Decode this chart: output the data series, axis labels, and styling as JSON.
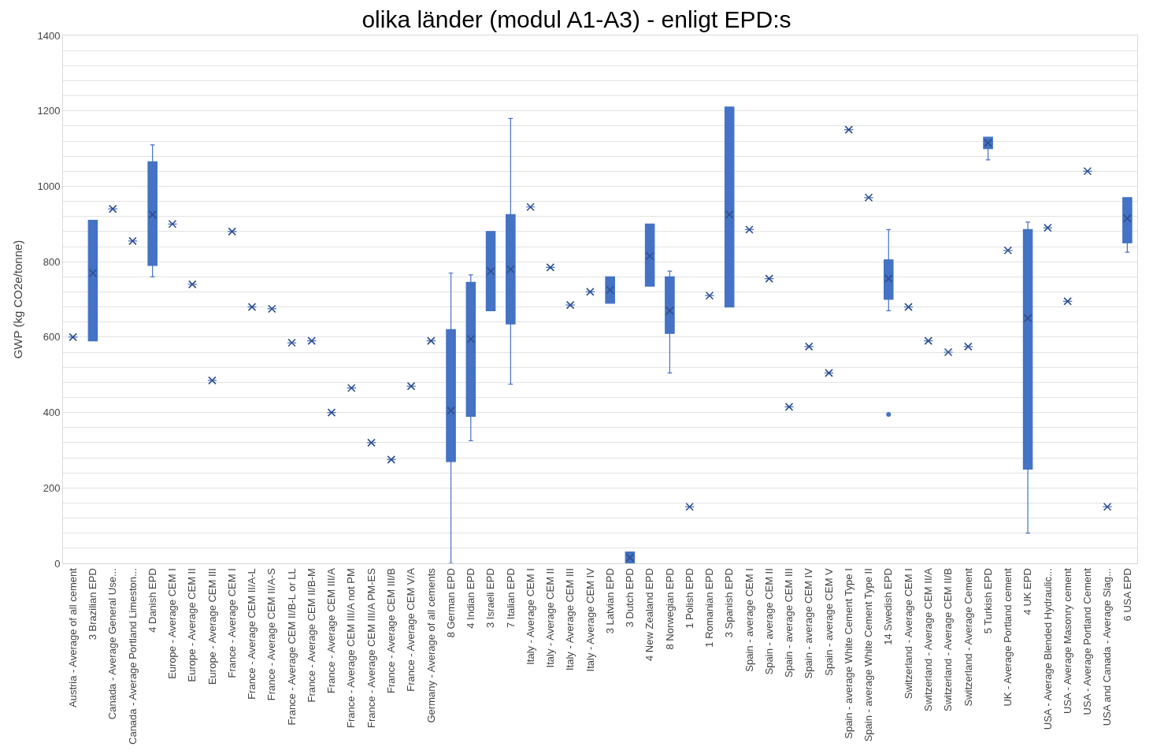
{
  "chart_data": {
    "type": "box",
    "title": "olika länder (modul A1-A3) - enligt EPD:s",
    "ylabel": "GWP (kg CO2e/tonne)",
    "categories": [
      "Austria - Average of all cement",
      "3 Brazilian EPD",
      "Canada - Average General Use...",
      "Canada - Average Portland Limeston...",
      "4 Danish EPD",
      "Europe - Average CEM I",
      "Europe - Average CEM II",
      "Europe - Average CEM III",
      "France - Average CEM I",
      "France - Average CEM II/A-L",
      "France - Average CEM II/A-S",
      "France - Average CEM II/B-L or LL",
      "France - Average CEM II/B-M",
      "France - Average CEM III/A",
      "France - Average CEM III/A not PM",
      "France - Average CEM III/A PM-ES",
      "France - Average CEM III/B",
      "France - Average CEM V/A",
      "Germany - Average of all cements",
      "8 German EPD",
      "4 Indian EPD",
      "3 Israeli EPD",
      "7 Italian EPD",
      "Italy - Average CEM I",
      "Italy - Average CEM II",
      "Italy - Average CEM III",
      "Italy - Average CEM IV",
      "3 Latvian EPD",
      "3 Dutch EPD",
      "4 New Zealand EPD",
      "8 Norwegian EPD",
      "1 Polish EPD",
      "1 Romanian EPD",
      "3 Spanish EPD",
      "Spain - average CEM I",
      "Spain - average CEM II",
      "Spain - average CEM III",
      "Spain - average CEM IV",
      "Spain - average CEM V",
      "Spain - average White Cement Type I",
      "Spain - average White Cement Type II",
      "14 Swedish EPD",
      "Switzerland - Average CEM I",
      "Switzerland - Average CEM II/A",
      "Switzerland - Average CEM II/B",
      "Switzerland - Average Cement",
      "5 Turkish EPD",
      "UK - Average Portland cement",
      "4 UK EPD",
      "USA - Average Blended Hydraulic...",
      "USA - Average Masonry cement",
      "USA - Average Portland Cement",
      "USA and Canada - Average Slag...",
      "6 USA EPD"
    ],
    "boxes": [
      {
        "low": 600,
        "q1": 600,
        "median": 600,
        "q3": 600,
        "high": 600,
        "mean": 600
      },
      {
        "low": 590,
        "q1": 590,
        "median": 790,
        "q3": 910,
        "high": 910,
        "mean": 770
      },
      {
        "low": 940,
        "q1": 940,
        "median": 940,
        "q3": 940,
        "high": 940,
        "mean": 940
      },
      {
        "low": 855,
        "q1": 855,
        "median": 855,
        "q3": 855,
        "high": 855,
        "mean": 855
      },
      {
        "low": 760,
        "q1": 790,
        "median": 915,
        "q3": 1065,
        "high": 1110,
        "mean": 925
      },
      {
        "low": 900,
        "q1": 900,
        "median": 900,
        "q3": 900,
        "high": 900,
        "mean": 900
      },
      {
        "low": 740,
        "q1": 740,
        "median": 740,
        "q3": 740,
        "high": 740,
        "mean": 740
      },
      {
        "low": 485,
        "q1": 485,
        "median": 485,
        "q3": 485,
        "high": 485,
        "mean": 485
      },
      {
        "low": 880,
        "q1": 880,
        "median": 880,
        "q3": 880,
        "high": 880,
        "mean": 880
      },
      {
        "low": 680,
        "q1": 680,
        "median": 680,
        "q3": 680,
        "high": 680,
        "mean": 680
      },
      {
        "low": 675,
        "q1": 675,
        "median": 675,
        "q3": 675,
        "high": 675,
        "mean": 675
      },
      {
        "low": 585,
        "q1": 585,
        "median": 585,
        "q3": 585,
        "high": 585,
        "mean": 585
      },
      {
        "low": 590,
        "q1": 590,
        "median": 590,
        "q3": 590,
        "high": 590,
        "mean": 590
      },
      {
        "low": 400,
        "q1": 400,
        "median": 400,
        "q3": 400,
        "high": 400,
        "mean": 400
      },
      {
        "low": 465,
        "q1": 465,
        "median": 465,
        "q3": 465,
        "high": 465,
        "mean": 465
      },
      {
        "low": 320,
        "q1": 320,
        "median": 320,
        "q3": 320,
        "high": 320,
        "mean": 320
      },
      {
        "low": 275,
        "q1": 275,
        "median": 275,
        "q3": 275,
        "high": 275,
        "mean": 275
      },
      {
        "low": 470,
        "q1": 470,
        "median": 470,
        "q3": 470,
        "high": 470,
        "mean": 470
      },
      {
        "low": 590,
        "q1": 590,
        "median": 590,
        "q3": 590,
        "high": 590,
        "mean": 590
      },
      {
        "low": 0,
        "q1": 270,
        "median": 380,
        "q3": 620,
        "high": 770,
        "mean": 405
      },
      {
        "low": 325,
        "q1": 390,
        "median": 645,
        "q3": 745,
        "high": 765,
        "mean": 595
      },
      {
        "low": 670,
        "q1": 670,
        "median": 775,
        "q3": 880,
        "high": 880,
        "mean": 775
      },
      {
        "low": 475,
        "q1": 635,
        "median": 765,
        "q3": 925,
        "high": 1180,
        "mean": 780
      },
      {
        "low": 945,
        "q1": 945,
        "median": 945,
        "q3": 945,
        "high": 945,
        "mean": 945
      },
      {
        "low": 785,
        "q1": 785,
        "median": 785,
        "q3": 785,
        "high": 785,
        "mean": 785
      },
      {
        "low": 685,
        "q1": 685,
        "median": 685,
        "q3": 685,
        "high": 685,
        "mean": 685
      },
      {
        "low": 720,
        "q1": 720,
        "median": 720,
        "q3": 720,
        "high": 720,
        "mean": 720
      },
      {
        "low": 690,
        "q1": 690,
        "median": 725,
        "q3": 760,
        "high": 760,
        "mean": 725
      },
      {
        "low": 0,
        "q1": 0,
        "median": 15,
        "q3": 30,
        "high": 30,
        "mean": 15
      },
      {
        "low": 735,
        "q1": 735,
        "median": 820,
        "q3": 900,
        "high": 900,
        "mean": 815
      },
      {
        "low": 505,
        "q1": 610,
        "median": 670,
        "q3": 760,
        "high": 775,
        "mean": 670
      },
      {
        "low": 150,
        "q1": 150,
        "median": 150,
        "q3": 150,
        "high": 150,
        "mean": 150
      },
      {
        "low": 710,
        "q1": 710,
        "median": 710,
        "q3": 710,
        "high": 710,
        "mean": 710
      },
      {
        "low": 680,
        "q1": 680,
        "median": 925,
        "q3": 1210,
        "high": 1210,
        "mean": 925
      },
      {
        "low": 885,
        "q1": 885,
        "median": 885,
        "q3": 885,
        "high": 885,
        "mean": 885
      },
      {
        "low": 755,
        "q1": 755,
        "median": 755,
        "q3": 755,
        "high": 755,
        "mean": 755
      },
      {
        "low": 415,
        "q1": 415,
        "median": 415,
        "q3": 415,
        "high": 415,
        "mean": 415
      },
      {
        "low": 575,
        "q1": 575,
        "median": 575,
        "q3": 575,
        "high": 575,
        "mean": 575
      },
      {
        "low": 505,
        "q1": 505,
        "median": 505,
        "q3": 505,
        "high": 505,
        "mean": 505
      },
      {
        "low": 1150,
        "q1": 1150,
        "median": 1150,
        "q3": 1150,
        "high": 1150,
        "mean": 1150
      },
      {
        "low": 970,
        "q1": 970,
        "median": 970,
        "q3": 970,
        "high": 970,
        "mean": 970
      },
      {
        "low": 670,
        "q1": 700,
        "median": 745,
        "q3": 805,
        "high": 885,
        "mean": 755,
        "outliers": [
          395
        ]
      },
      {
        "low": 680,
        "q1": 680,
        "median": 680,
        "q3": 680,
        "high": 680,
        "mean": 680
      },
      {
        "low": 590,
        "q1": 590,
        "median": 590,
        "q3": 590,
        "high": 590,
        "mean": 590
      },
      {
        "low": 560,
        "q1": 560,
        "median": 560,
        "q3": 560,
        "high": 560,
        "mean": 560
      },
      {
        "low": 575,
        "q1": 575,
        "median": 575,
        "q3": 575,
        "high": 575,
        "mean": 575
      },
      {
        "low": 1070,
        "q1": 1100,
        "median": 1115,
        "q3": 1130,
        "high": 1130,
        "mean": 1115
      },
      {
        "low": 830,
        "q1": 830,
        "median": 830,
        "q3": 830,
        "high": 830,
        "mean": 830
      },
      {
        "low": 80,
        "q1": 250,
        "median": 800,
        "q3": 885,
        "high": 905,
        "mean": 650
      },
      {
        "low": 890,
        "q1": 890,
        "median": 890,
        "q3": 890,
        "high": 890,
        "mean": 890
      },
      {
        "low": 695,
        "q1": 695,
        "median": 695,
        "q3": 695,
        "high": 695,
        "mean": 695
      },
      {
        "low": 1040,
        "q1": 1040,
        "median": 1040,
        "q3": 1040,
        "high": 1040,
        "mean": 1040
      },
      {
        "low": 150,
        "q1": 150,
        "median": 150,
        "q3": 150,
        "high": 150,
        "mean": 150
      },
      {
        "low": 825,
        "q1": 850,
        "median": 905,
        "q3": 970,
        "high": 970,
        "mean": 915
      }
    ],
    "color": "#4472c4",
    "marker": "cross",
    "grid": "y",
    "ylim": [
      0,
      1400
    ],
    "yticks": [
      0,
      {
        "value": 40,
        "label": null
      },
      {
        "value": 80,
        "label": null
      },
      {
        "value": 120,
        "label": null
      },
      {
        "value": 160,
        "label": null
      },
      200,
      {
        "value": 240,
        "label": null
      },
      {
        "value": 280,
        "label": null
      },
      {
        "value": 320,
        "label": null
      },
      {
        "value": 360,
        "label": null
      },
      400,
      {
        "value": 440,
        "label": null
      },
      {
        "value": 480,
        "label": null
      },
      {
        "value": 520,
        "label": null
      },
      {
        "value": 560,
        "label": null
      },
      600,
      {
        "value": 640,
        "label": null
      },
      {
        "value": 680,
        "label": null
      },
      {
        "value": 720,
        "label": null
      },
      {
        "value": 760,
        "label": null
      },
      800,
      {
        "value": 840,
        "label": null
      },
      {
        "value": 880,
        "label": null
      },
      {
        "value": 920,
        "label": null
      },
      {
        "value": 960,
        "label": null
      },
      1000,
      {
        "value": 1040,
        "label": null
      },
      {
        "value": 1080,
        "label": null
      },
      {
        "value": 1120,
        "label": null
      },
      {
        "value": 1160,
        "label": null
      },
      1200,
      {
        "value": 1240,
        "label": null
      },
      {
        "value": 1280,
        "label": null
      },
      {
        "value": 1320,
        "label": null
      },
      {
        "value": 1360,
        "label": null
      },
      1400
    ]
  }
}
